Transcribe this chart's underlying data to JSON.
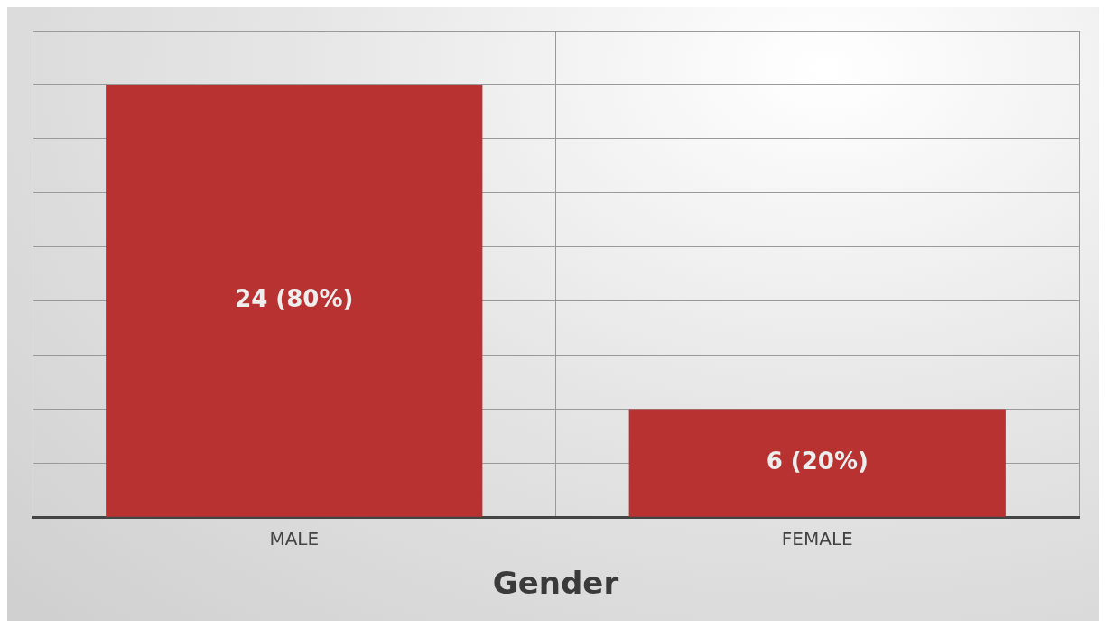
{
  "chart_data": {
    "type": "bar",
    "xlabel": "Gender",
    "categories": [
      "MALE",
      "FEMALE"
    ],
    "values": [
      24,
      6
    ],
    "color": "#b83232",
    "value_labels": [
      "24 (80%)",
      "6 (20%)"
    ],
    "ylim": [
      0,
      27
    ],
    "yticks": [
      {
        "value": 0,
        "label": null
      },
      {
        "value": 3,
        "label": null
      },
      {
        "value": 6,
        "label": null
      },
      {
        "value": 9,
        "label": null
      },
      {
        "value": 12,
        "label": null
      },
      {
        "value": 15,
        "label": null
      },
      {
        "value": 18,
        "label": null
      },
      {
        "value": 21,
        "label": null
      },
      {
        "value": 24,
        "label": null
      },
      {
        "value": 27,
        "label": null
      }
    ],
    "tick_labels": "x",
    "grid": true,
    "legend": false
  }
}
